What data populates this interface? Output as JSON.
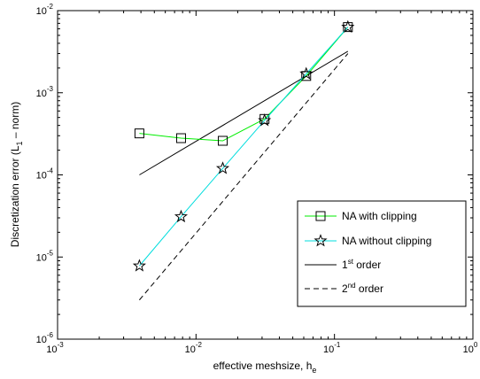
{
  "chart_data": {
    "type": "line",
    "xscale": "log",
    "yscale": "log",
    "xlim": [
      0.001,
      1
    ],
    "ylim": [
      1e-06,
      0.01
    ],
    "xticks": [
      {
        "value": 0.001,
        "base": "10",
        "exp": "-3"
      },
      {
        "value": 0.01,
        "base": "10",
        "exp": "-2"
      },
      {
        "value": 0.1,
        "base": "10",
        "exp": "-1"
      },
      {
        "value": 1,
        "base": "10",
        "exp": "0"
      }
    ],
    "yticks": [
      {
        "value": 1e-06,
        "base": "10",
        "exp": "-6"
      },
      {
        "value": 1e-05,
        "base": "10",
        "exp": "-5"
      },
      {
        "value": 0.0001,
        "base": "10",
        "exp": "-4"
      },
      {
        "value": 0.001,
        "base": "10",
        "exp": "-3"
      },
      {
        "value": 0.01,
        "base": "10",
        "exp": "-2"
      }
    ],
    "xlabel": {
      "main": "effective meshsize, h",
      "sub": "e"
    },
    "ylabel": {
      "pre": "Discretization error (L",
      "sub": "1",
      "post": " – norm)"
    },
    "grid": false,
    "legend_position": "bottom-right",
    "series": [
      {
        "name": "NA with clipping",
        "color": "#00ee00",
        "marker": "square",
        "dash": "solid",
        "x": [
          0.0039,
          0.0078,
          0.0156,
          0.03125,
          0.0625,
          0.125
        ],
        "y": [
          0.00032,
          0.00028,
          0.00026,
          0.00048,
          0.0016,
          0.0063
        ]
      },
      {
        "name": "NA without clipping",
        "color": "#00dddd",
        "marker": "star",
        "dash": "solid",
        "x": [
          0.0039,
          0.0078,
          0.0156,
          0.03125,
          0.0625,
          0.125
        ],
        "y": [
          7.8e-06,
          3.1e-05,
          0.00012,
          0.00046,
          0.0017,
          0.0063
        ]
      },
      {
        "name": "1st order",
        "name_parts": [
          "1",
          "st",
          " order"
        ],
        "color": "#000000",
        "marker": "none",
        "dash": "solid",
        "x": [
          0.0039,
          0.125
        ],
        "y": [
          0.0001,
          0.0032
        ]
      },
      {
        "name": "2nd order",
        "name_parts": [
          "2",
          "nd",
          " order"
        ],
        "color": "#000000",
        "marker": "none",
        "dash": "dashed",
        "x": [
          0.0039,
          0.125
        ],
        "y": [
          3e-06,
          0.003
        ]
      }
    ]
  }
}
